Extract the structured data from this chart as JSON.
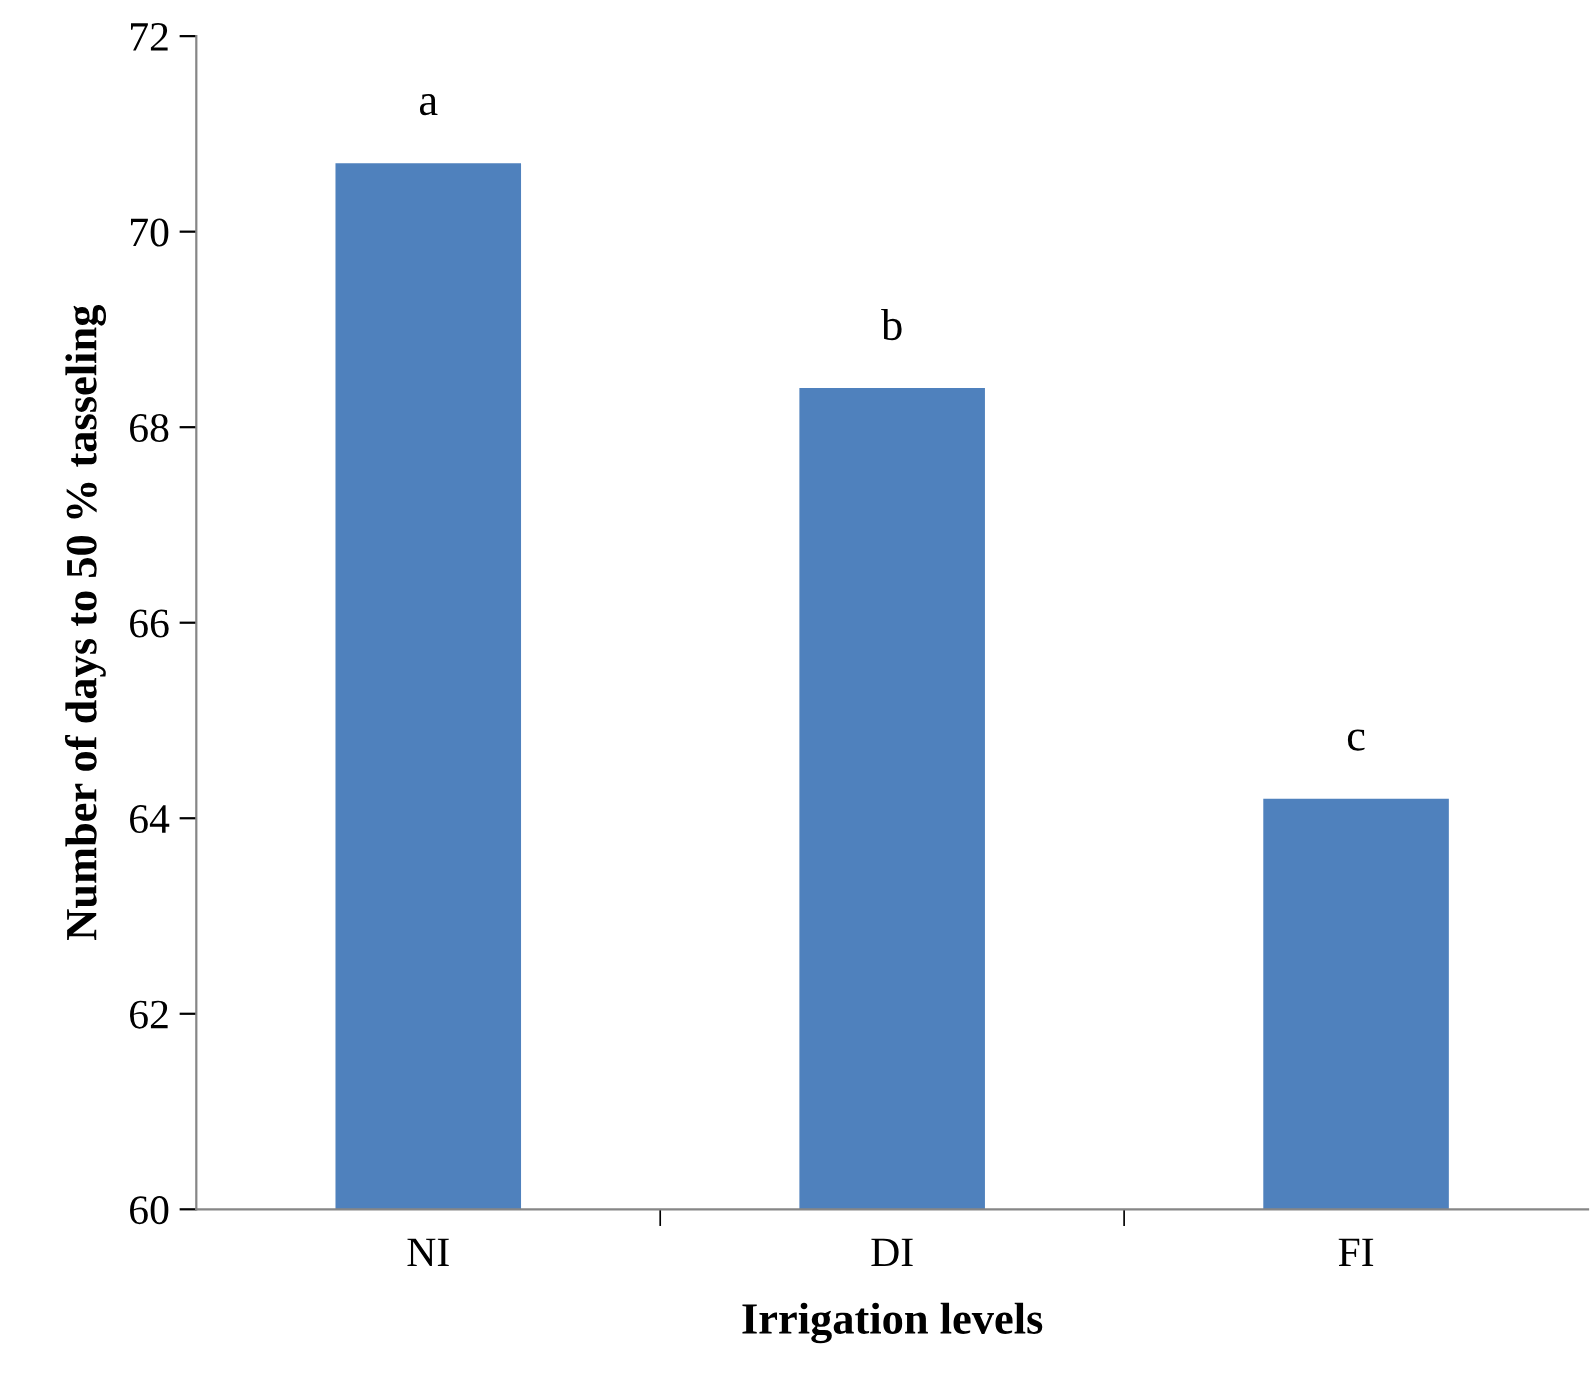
{
  "chart_data": {
    "type": "bar",
    "xlabel": "Irrigation levels",
    "ylabel": "Number of days to 50 % tasseling",
    "categories": [
      "NI",
      "DI",
      "FI"
    ],
    "values": [
      70.7,
      68.4,
      64.2
    ],
    "color": "#4f81bd",
    "ylim": [
      60,
      72
    ],
    "yticks": [
      60,
      62,
      64,
      66,
      68,
      70,
      72
    ],
    "grid": false,
    "legend": false,
    "annotations": [
      {
        "text": "a",
        "x": "NI",
        "y": 70.7
      },
      {
        "text": "b",
        "x": "DI",
        "y": 68.4
      },
      {
        "text": "c",
        "x": "FI",
        "y": 64.2
      }
    ]
  }
}
